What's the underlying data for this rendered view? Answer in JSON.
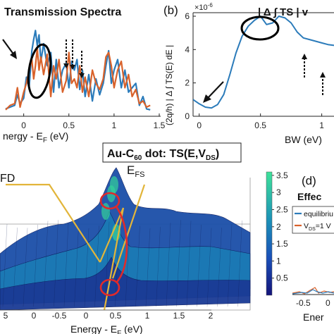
{
  "colors": {
    "equilibrium": "#2b7bba",
    "bias": "#d9622b",
    "guide": "#e2b53a",
    "marker": "#e02a2a",
    "surface_low": "#1a2a9a",
    "surface_mid": "#1a7ab0",
    "surface_high": "#33d29a"
  },
  "chart_data": [
    {
      "panel": "a",
      "type": "line",
      "title": "Transmission Spectra",
      "xlabel": "nergy - E",
      "xlabel_sub": "F",
      "xlabel_unit": " (eV)",
      "xlim": [
        -0.2,
        1.5
      ],
      "xticks": [
        "0",
        "0.5",
        "1",
        "1.5"
      ],
      "xtick_values": [
        0,
        0.5,
        1,
        1.5
      ],
      "series": [
        {
          "color_key": "equilibrium",
          "x": [
            -0.2,
            -0.15,
            -0.1,
            -0.07,
            -0.04,
            0.0,
            0.03,
            0.06,
            0.09,
            0.11,
            0.13,
            0.15,
            0.17,
            0.19,
            0.22,
            0.26,
            0.3,
            0.33,
            0.36,
            0.39,
            0.43,
            0.47,
            0.5,
            0.53,
            0.56,
            0.59,
            0.62,
            0.65,
            0.68,
            0.72,
            0.76,
            0.8,
            0.84,
            0.88,
            0.91,
            0.94,
            0.97,
            1.0,
            1.04,
            1.08,
            1.12,
            1.16,
            1.2,
            1.24,
            1.28,
            1.32,
            1.36,
            1.4
          ],
          "y": [
            0.06,
            0.08,
            0.1,
            0.22,
            0.12,
            0.18,
            0.42,
            0.3,
            0.72,
            0.85,
            0.95,
            0.78,
            0.9,
            0.6,
            0.8,
            0.55,
            0.7,
            0.25,
            0.62,
            0.3,
            0.5,
            0.58,
            0.3,
            0.6,
            0.5,
            0.62,
            0.28,
            0.5,
            0.2,
            0.45,
            0.15,
            0.4,
            0.22,
            0.35,
            0.55,
            0.72,
            0.35,
            0.5,
            0.62,
            0.3,
            0.5,
            0.25,
            0.3,
            0.35,
            0.1,
            0.2,
            0.06,
            0.05
          ]
        },
        {
          "color_key": "bias",
          "x": [
            -0.2,
            -0.15,
            -0.1,
            -0.07,
            -0.04,
            0.0,
            0.03,
            0.06,
            0.09,
            0.11,
            0.13,
            0.15,
            0.17,
            0.19,
            0.22,
            0.26,
            0.3,
            0.33,
            0.36,
            0.39,
            0.43,
            0.47,
            0.5,
            0.53,
            0.56,
            0.59,
            0.62,
            0.65,
            0.68,
            0.72,
            0.76,
            0.8,
            0.84,
            0.88,
            0.91,
            0.94,
            0.97,
            1.0,
            1.04,
            1.08,
            1.12,
            1.16,
            1.2,
            1.24,
            1.28,
            1.32,
            1.36,
            1.4
          ],
          "y": [
            0.05,
            0.1,
            0.12,
            0.3,
            0.08,
            0.25,
            0.35,
            0.5,
            0.62,
            0.4,
            0.55,
            0.75,
            0.5,
            0.65,
            0.45,
            0.68,
            0.2,
            0.55,
            0.4,
            0.62,
            0.25,
            0.38,
            0.7,
            0.35,
            0.4,
            0.3,
            0.55,
            0.25,
            0.42,
            0.2,
            0.5,
            0.35,
            0.28,
            0.4,
            0.65,
            0.7,
            0.55,
            0.3,
            0.5,
            0.6,
            0.3,
            0.45,
            0.2,
            0.28,
            0.12,
            0.15,
            0.08,
            0.1
          ]
        }
      ]
    },
    {
      "panel": "b",
      "panel_label": "(b)",
      "type": "line",
      "title": "| Δ ∫ TS | v",
      "scale_label": "×10",
      "scale_exp": "-6",
      "xlabel": "BW (eV)",
      "ylabel": "(2q/h) | Δ ∫ TS(E) dE |",
      "xlim": [
        -0.05,
        1.1
      ],
      "ylim": [
        0,
        6
      ],
      "xticks": [
        "0",
        "0.5",
        "1"
      ],
      "xtick_values": [
        0,
        0.5,
        1
      ],
      "yticks": [
        "0",
        "2",
        "4",
        "6"
      ],
      "ytick_values": [
        0,
        2,
        4,
        6
      ],
      "series": [
        {
          "color_key": "equilibrium",
          "x": [
            -0.05,
            0.0,
            0.05,
            0.1,
            0.15,
            0.2,
            0.25,
            0.3,
            0.35,
            0.4,
            0.45,
            0.5,
            0.55,
            0.6,
            0.65,
            0.7,
            0.75,
            0.8,
            0.85,
            0.9,
            0.95,
            1.0,
            1.05,
            1.1
          ],
          "y": [
            1.0,
            0.75,
            0.55,
            0.5,
            0.7,
            1.3,
            2.5,
            3.8,
            4.8,
            5.4,
            5.75,
            6.0,
            5.5,
            5.6,
            6.0,
            5.9,
            5.6,
            5.05,
            4.7,
            4.6,
            4.5,
            4.4,
            4.3,
            4.25
          ]
        }
      ]
    },
    {
      "panel": "c",
      "type": "surface",
      "title": "Au-C",
      "title_sub": "60",
      "title_rest": " dot: TS(E,V",
      "title_sub2": "DS",
      "title_end": ")",
      "annotation": "E",
      "annotation_sub": "FS",
      "left_label": "FD",
      "xlabel": "Energy - E",
      "xlabel_sub": "F",
      "xlabel_unit": " (eV)",
      "xticks": [
        "5",
        "0",
        "-0.5",
        "0",
        "0.5",
        "1",
        "1.5",
        "2"
      ],
      "colorbar_ticks": [
        "3.5",
        "3",
        "2.5",
        "2",
        "1.5",
        "1",
        "0.5"
      ],
      "colorbar_values": [
        3.5,
        3,
        2.5,
        2,
        1.5,
        1,
        0.5
      ]
    },
    {
      "panel": "d",
      "panel_label": "(d)",
      "type": "line",
      "title": "Effec",
      "legend": [
        "equilibriu",
        "V",
        "DS",
        "=1 V"
      ],
      "xticks": [
        "-0.5",
        "0"
      ],
      "xlabel": "Ener"
    }
  ]
}
